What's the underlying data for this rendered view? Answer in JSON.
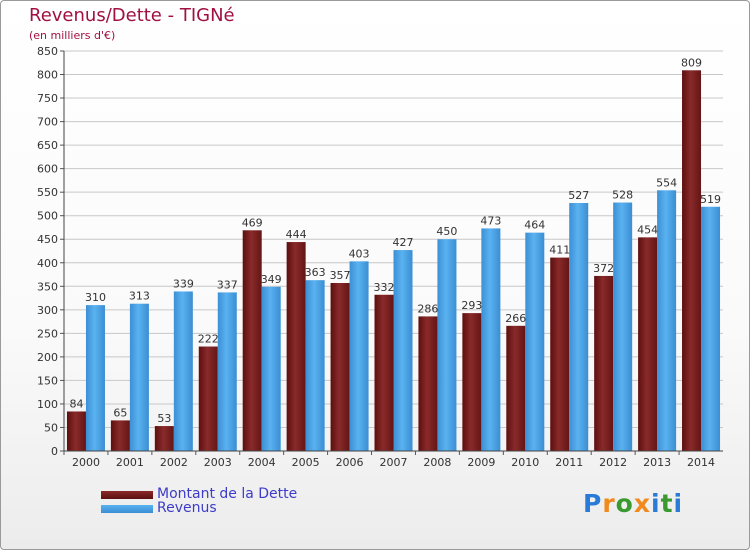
{
  "title": "Revenus/Dette - TIGNé",
  "subtitle": "(en milliers d'€)",
  "logo": {
    "letters": [
      "P",
      "r",
      "o",
      "x",
      "i",
      "t",
      "i"
    ],
    "colors": [
      "#2a7bd8",
      "#f08a1c",
      "#3a9a30",
      "#f08a1c",
      "#2a7bd8",
      "#3a9a30",
      "#2a7bd8"
    ]
  },
  "chart_data": {
    "type": "bar",
    "title": "Revenus/Dette - TIGNé",
    "ylabel": "(en milliers d'€)",
    "categories": [
      "2000",
      "2001",
      "2002",
      "2003",
      "2004",
      "2005",
      "2006",
      "2007",
      "2008",
      "2009",
      "2010",
      "2011",
      "2012",
      "2013",
      "2014"
    ],
    "series": [
      {
        "name": "Montant de la Dette",
        "color": "#7b1c1c",
        "values": [
          84,
          65,
          53,
          222,
          469,
          444,
          357,
          332,
          286,
          293,
          266,
          411,
          372,
          454,
          809
        ]
      },
      {
        "name": "Revenus",
        "color": "#4aa3e6",
        "values": [
          310,
          313,
          339,
          337,
          349,
          363,
          403,
          427,
          450,
          473,
          464,
          527,
          528,
          554,
          519
        ]
      }
    ],
    "yticks": [
      "0",
      "50",
      "100",
      "150",
      "200",
      "250",
      "300",
      "350",
      "400",
      "450",
      "500",
      "550",
      "600",
      "650",
      "700",
      "750",
      "800",
      "850"
    ],
    "ylim": [
      0,
      850
    ],
    "grid": true,
    "legend_position": "bottom-left"
  }
}
